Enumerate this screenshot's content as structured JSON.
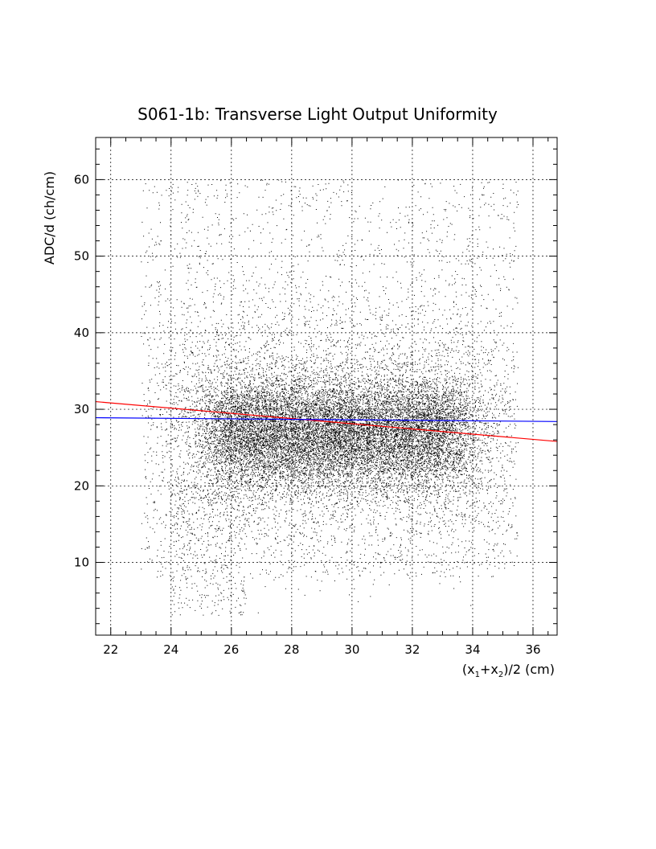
{
  "chart_data": {
    "type": "scatter",
    "title": "S061-1b: Transverse Light Output Uniformity",
    "xlabel": "(x1+x2)/2 (cm)",
    "xlabel_parts": {
      "pre": "(x",
      "sub1": "1",
      "mid": "+x",
      "sub2": "2",
      "post": ")/2 (cm)"
    },
    "ylabel": "ADC/d (ch/cm)",
    "xlim": [
      21.5,
      36.8
    ],
    "ylim": [
      0.5,
      65.5
    ],
    "x_ticks": [
      22,
      24,
      26,
      28,
      30,
      32,
      34,
      36
    ],
    "y_ticks": [
      10,
      20,
      30,
      40,
      50,
      60
    ],
    "grid": true,
    "grid_style": "dotted",
    "point_distribution": {
      "x_range": [
        23.0,
        35.5
      ],
      "y_range": [
        3,
        60
      ],
      "dense_core_x": [
        25.5,
        33.5
      ],
      "dense_core_y": [
        21,
        35
      ],
      "center_y": 27
    },
    "series": [
      {
        "kind": "fit-line",
        "color": "#ff0000",
        "x": [
          21.5,
          36.8
        ],
        "y": [
          31.0,
          25.8
        ]
      },
      {
        "kind": "fit-line",
        "color": "#0000ff",
        "x": [
          21.5,
          36.8
        ],
        "y": [
          28.9,
          28.4
        ]
      }
    ]
  },
  "colors": {
    "points": "#000000",
    "grid": "#000000",
    "frame": "#000000"
  }
}
